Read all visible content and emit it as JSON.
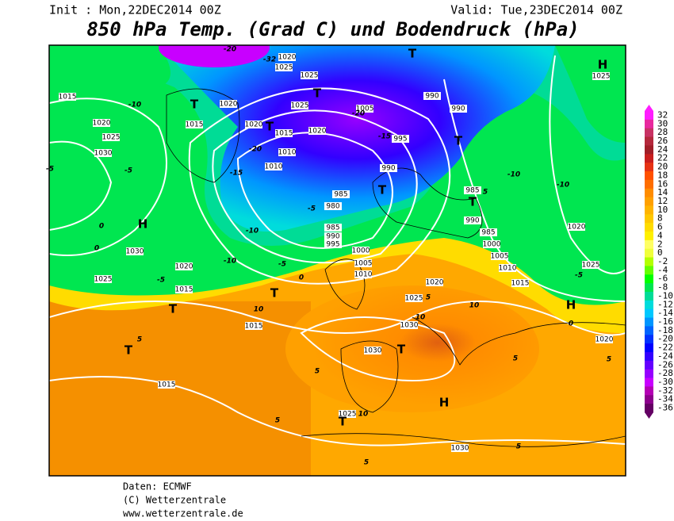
{
  "header": {
    "init": "Init : Mon,22DEC2014 00Z",
    "valid": "Valid: Tue,23DEC2014 00Z",
    "title": "850 hPa Temp. (Grad C) und Bodendruck (hPa)"
  },
  "legend": {
    "ticks": [
      32,
      30,
      28,
      26,
      24,
      22,
      20,
      18,
      16,
      14,
      12,
      10,
      8,
      6,
      4,
      2,
      0,
      -2,
      -4,
      -6,
      -8,
      -10,
      -12,
      -14,
      -16,
      -18,
      -20,
      -22,
      -24,
      -26,
      -28,
      -30,
      -32,
      -34,
      -36
    ],
    "colors": [
      "#ff1cff",
      "#e8289e",
      "#c83264",
      "#b4283c",
      "#a01e28",
      "#c81e1e",
      "#e63214",
      "#ff5000",
      "#ff6e00",
      "#ff8c00",
      "#ffa000",
      "#ffb400",
      "#ffc800",
      "#ffdc00",
      "#fff000",
      "#ffff64",
      "#f0ff3c",
      "#b4ff00",
      "#64ff00",
      "#00ff00",
      "#00e650",
      "#00dc96",
      "#00dcdc",
      "#00c8ff",
      "#0096ff",
      "#0064ff",
      "#0032ff",
      "#0000ff",
      "#3200ff",
      "#6400ff",
      "#9600ff",
      "#c800ff",
      "#b400b4",
      "#8c008c",
      "#640064"
    ]
  },
  "map_labels": [
    "1015",
    "1020",
    "1025",
    "1030",
    "-5",
    "-5",
    "0",
    "H",
    "1030",
    "0",
    "1025",
    "-5",
    "1020",
    "1015",
    "T",
    "T",
    "10",
    "1015",
    "T",
    "5",
    "1015",
    "-10",
    "T",
    "1015",
    "1020",
    "1020",
    "T",
    "1015",
    "1020",
    "1010",
    "-20",
    "1010",
    "-15",
    "1025",
    "1025",
    "T",
    "1025",
    "-20",
    "-32",
    "1020",
    "1005",
    "-20",
    "-15",
    "995",
    "990",
    "990",
    "T",
    "990",
    "985",
    "T",
    "-5",
    "980",
    "985",
    "990",
    "995",
    "1000",
    "-10",
    "-10",
    "-5",
    "0",
    "1005",
    "1010",
    "985",
    "5",
    "T",
    "990",
    "985",
    "1000",
    "1005",
    "1010",
    "1015",
    "1020",
    "1025",
    "5",
    "10",
    "1030",
    "10",
    "T",
    "1030",
    "5",
    "5",
    "1025",
    "10",
    "T",
    "H",
    "5",
    "1030",
    "5",
    "5",
    "1020",
    "5",
    "H",
    "0",
    "-5",
    "1025",
    "1020",
    "-10",
    "-10",
    "H",
    "1025",
    "T"
  ],
  "footer": [
    "Daten: ECMWF",
    "(C) Wetterzentrale",
    "www.wetterzentrale.de"
  ]
}
